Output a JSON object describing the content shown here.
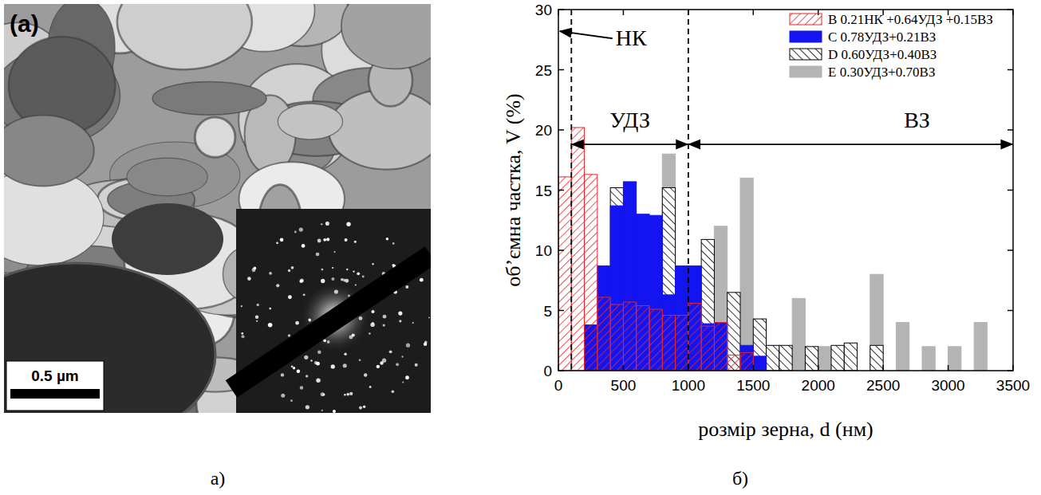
{
  "image": {
    "label": "(a)",
    "scale_bar": "0.5 µm"
  },
  "captions": [
    "а)",
    "б)"
  ],
  "chart_data": {
    "type": "histogram",
    "xlabel": "розмір зерна, d (нм)",
    "ylabel": "об’ємна частка, V (%)",
    "bins": [
      0,
      100,
      200,
      300,
      400,
      500,
      600,
      700,
      800,
      900,
      1000,
      1100,
      1200,
      1300,
      1400,
      1500,
      1600,
      1700,
      1800,
      1900,
      2000,
      2100,
      2200,
      2300,
      2400,
      2500,
      2600,
      2700,
      2800,
      2900,
      3000,
      3100,
      3200,
      3300,
      3400
    ],
    "xlim": [
      0,
      3500
    ],
    "ylim": [
      0,
      30
    ],
    "xticks": [
      0,
      500,
      1000,
      1500,
      2000,
      2500,
      3000,
      3500
    ],
    "yticks": [
      0,
      5,
      10,
      15,
      20,
      25,
      30
    ],
    "grid": false,
    "legend": "upper right",
    "reference_lines": [
      100,
      1000
    ],
    "annotations": [
      {
        "text": "НК",
        "x": 560,
        "y": 27.6,
        "arrow_to": [
          0,
          28.2
        ]
      },
      {
        "text": "УДЗ",
        "x": 550,
        "y": 20.8,
        "span": [
          100,
          1000
        ],
        "span_y": 18.8
      },
      {
        "text": "ВЗ",
        "x": 2760,
        "y": 20.8,
        "span": [
          1000,
          3500
        ],
        "span_y": 18.8
      }
    ],
    "series": [
      {
        "name": "B  0.21НК +0.64УДЗ +0.15ВЗ",
        "color": "#e3262b",
        "line_style": "hatched",
        "values": [
          16.1,
          20.2,
          16.3,
          6.1,
          5.5,
          5.7,
          5.4,
          5.1,
          4.6,
          4.6,
          5.6,
          3.7,
          4.0,
          1.3,
          1.5,
          0,
          0,
          0,
          0,
          0,
          0,
          0,
          0,
          0,
          0,
          0,
          0,
          0,
          0,
          0,
          0,
          0,
          0,
          0
        ]
      },
      {
        "name": "C  0.78УДЗ+0.21ВЗ",
        "color": "#1414f0",
        "line_style": "solid",
        "values": [
          0,
          0,
          3.8,
          8.7,
          13.7,
          15.7,
          13.0,
          12.9,
          6.3,
          8.7,
          8.7,
          3.9,
          4.0,
          0,
          2.1,
          1.2,
          0,
          0,
          0,
          0,
          0,
          0,
          0,
          0,
          0,
          0,
          0,
          0,
          0,
          0,
          0,
          0,
          0,
          0
        ]
      },
      {
        "name": "D  0.60УДЗ+0.40ВЗ",
        "color": "#000000",
        "line_style": "backhatched",
        "values": [
          0,
          0,
          0,
          0,
          15.2,
          0,
          0,
          0,
          15.2,
          8.6,
          0,
          10.9,
          0,
          6.5,
          0,
          4.3,
          2.1,
          2.1,
          0,
          2.0,
          0,
          2.1,
          2.3,
          0,
          2.1,
          0,
          0,
          0,
          0,
          0,
          0,
          0,
          0,
          0
        ]
      },
      {
        "name": "E  0.30УДЗ+0.70ВЗ",
        "color": "#b4b4b4",
        "line_style": "solid",
        "values": [
          0,
          0,
          0,
          0,
          0,
          0,
          12.0,
          0,
          18.0,
          0,
          0,
          0,
          12.0,
          0,
          16.0,
          4.0,
          0,
          0,
          6.0,
          0,
          2.0,
          0,
          0,
          0,
          8.0,
          0,
          4.0,
          0,
          2.0,
          0,
          2.0,
          0,
          4.0,
          0
        ]
      }
    ]
  }
}
